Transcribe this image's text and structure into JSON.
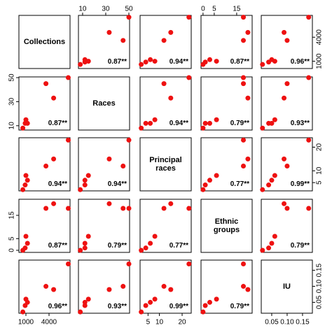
{
  "chart_data": {
    "type": "scatter_matrix",
    "color": "#ee1111",
    "variables": [
      {
        "name": "Collections",
        "values": [
          600,
          900,
          1200,
          1000,
          3600,
          4600,
          6500
        ],
        "lim": [
          90,
          6730
        ],
        "ticks": [
          1000,
          4000
        ]
      },
      {
        "name": "Races",
        "values": [
          8,
          12,
          12,
          15,
          45,
          33,
          50
        ],
        "lim": [
          6.4,
          50.6
        ],
        "ticks": [
          10,
          30,
          50
        ]
      },
      {
        "name": "Principal races",
        "values": [
          2,
          4,
          6,
          8,
          12,
          15,
          23
        ],
        "lim": [
          1.5,
          24
        ],
        "ticks": [
          5,
          10,
          20
        ]
      },
      {
        "name": "Ethnic groups",
        "values": [
          0,
          1,
          3,
          6,
          18,
          20,
          18
        ],
        "lim": [
          -0.9,
          21.9
        ],
        "ticks": [
          0,
          5,
          15
        ]
      },
      {
        "name": "IU",
        "values": [
          0.02,
          0.04,
          0.05,
          0.06,
          0.1,
          0.09,
          0.17
        ],
        "lim": [
          0.016,
          0.182
        ],
        "ticks": [
          0.05,
          {
            "value": 0.1,
            "label": "0.10"
          },
          0.15
        ]
      }
    ],
    "correlations": [
      [
        null,
        "0.87**",
        "0.94**",
        "0.87**",
        "0.96**"
      ],
      [
        "0.87**",
        null,
        "0.94**",
        "0.79**",
        "0.93**"
      ],
      [
        "0.94**",
        "0.94**",
        null,
        "0.77**",
        "0.99**"
      ],
      [
        "0.87**",
        "0.79**",
        "0.77**",
        null,
        "0.79**"
      ],
      [
        "0.96**",
        "0.93**",
        "0.99**",
        "0.79**",
        null
      ]
    ]
  }
}
